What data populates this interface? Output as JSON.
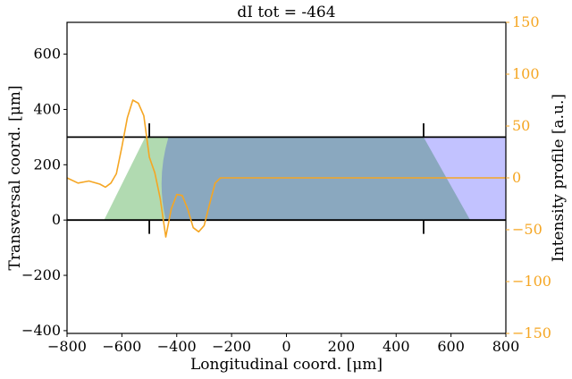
{
  "chart_data": {
    "type": "line",
    "title": "dI tot = -464",
    "xlabel": "Longitudinal coord. [μm]",
    "ylabel_left": "Transversal coord. [μm]",
    "ylabel_right": "Intensity profile [a.u.]",
    "xlim": [
      -800,
      800
    ],
    "ylim_left": [
      -410,
      715
    ],
    "ylim_right": [
      -150,
      150
    ],
    "x_ticks": [
      -800,
      -600,
      -400,
      -200,
      0,
      200,
      400,
      600,
      800
    ],
    "x_tick_labels": [
      "−800",
      "−600",
      "−400",
      "−200",
      "0",
      "200",
      "400",
      "600",
      "800"
    ],
    "left_ticks": [
      -400,
      -200,
      0,
      200,
      400,
      600
    ],
    "left_tick_labels": [
      "−400",
      "−200",
      "0",
      "200",
      "400",
      "600"
    ],
    "right_ticks": [
      -150,
      -100,
      -50,
      0,
      50,
      100,
      150
    ],
    "right_tick_labels": [
      "−150",
      "−100",
      "−50",
      "0",
      "50",
      "100",
      "150"
    ],
    "colors": {
      "green_region": "#9ed19e",
      "blue_region": "#b3b3ff",
      "overlap_region": "#8aa8bf",
      "intensity_line": "#f5a623",
      "boundary": "#000000",
      "right_axis": "#f5a623"
    },
    "regions": {
      "green": [
        [
          -665,
          0
        ],
        [
          -420,
          0
        ],
        [
          -420,
          300
        ],
        [
          -515,
          300
        ]
      ],
      "blue": [
        [
          -420,
          0
        ],
        [
          800,
          0
        ],
        [
          800,
          300
        ],
        [
          -420,
          300
        ]
      ],
      "overlap": [
        [
          -440,
          0
        ],
        [
          670,
          0
        ],
        [
          500,
          300
        ],
        [
          -430,
          300
        ]
      ]
    },
    "boundaries": {
      "lines_y": [
        0,
        300
      ],
      "x_range": [
        -800,
        800
      ],
      "markers_x": [
        -500,
        500
      ],
      "marker_top": [
        300,
        350
      ],
      "marker_bottom": [
        -50,
        0
      ]
    },
    "series": [
      {
        "x": [
          -800,
          -760,
          -720,
          -680,
          -660,
          -640,
          -620,
          -600,
          -580,
          -560,
          -540,
          -520,
          -510,
          -500,
          -480,
          -460,
          -440,
          -420,
          -400,
          -380,
          -360,
          -340,
          -320,
          -300,
          -280,
          -260,
          -240,
          -220,
          -200,
          0,
          200,
          400,
          600,
          800
        ],
        "y": [
          0,
          -5,
          -3,
          -6,
          -9,
          -5,
          4,
          30,
          58,
          75,
          72,
          60,
          40,
          20,
          5,
          -20,
          -57,
          -30,
          -16,
          -17,
          -30,
          -48,
          -52,
          -46,
          -25,
          -5,
          0,
          0,
          0,
          0,
          0,
          0,
          0,
          0
        ]
      }
    ]
  }
}
